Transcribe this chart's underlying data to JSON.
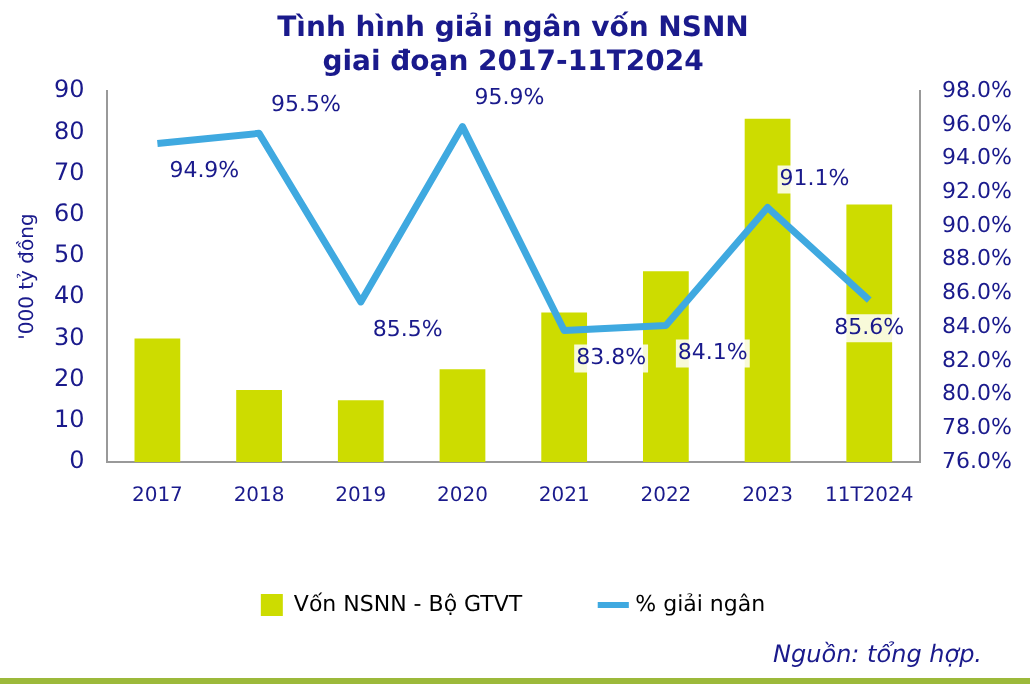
{
  "chart_data": {
    "type": "bar",
    "title": "Tình hình giải ngân vốn NSNN\ngiai đoạn 2017-11T2024",
    "ylabel": "'000 tỷ đồng",
    "categories": [
      "2017",
      "2018",
      "2019",
      "2020",
      "2021",
      "2022",
      "2023",
      "11T2024"
    ],
    "series": [
      {
        "name": "Vốn NSNN - Bộ GTVT",
        "color": "#cddc00",
        "values": [
          30,
          17.5,
          15,
          22.5,
          36.3,
          46.3,
          83.3,
          62.5
        ]
      },
      {
        "name": "% giải ngân",
        "type": "line",
        "axis": "y2",
        "color": "#3fa9e0",
        "values": [
          94.9,
          95.5,
          85.5,
          95.9,
          83.8,
          84.1,
          91.1,
          85.6
        ],
        "value_labels": [
          "94.9%",
          "95.5%",
          "85.5%",
          "95.9%",
          "83.8%",
          "84.1%",
          "91.1%",
          "85.6%"
        ]
      }
    ],
    "ylim": [
      0,
      90
    ],
    "yticks": [
      0,
      10,
      20,
      30,
      40,
      50,
      60,
      70,
      80,
      90
    ],
    "y2lim": [
      76,
      98
    ],
    "y2ticks": [
      {
        "value": 76,
        "label": "76.0%"
      },
      {
        "value": 78,
        "label": "78.0%"
      },
      {
        "value": 80,
        "label": "80.0%"
      },
      {
        "value": 82,
        "label": "82.0%"
      },
      {
        "value": 84,
        "label": "84.0%"
      },
      {
        "value": 86,
        "label": "86.0%"
      },
      {
        "value": 88,
        "label": "88.0%"
      },
      {
        "value": 90,
        "label": "90.0%"
      },
      {
        "value": 92,
        "label": "92.0%"
      },
      {
        "value": 94,
        "label": "94.0%"
      },
      {
        "value": 96,
        "label": "96.0%"
      },
      {
        "value": 98,
        "label": "98.0%"
      }
    ],
    "grid": false,
    "legend": "bottom",
    "marker": "none",
    "annotations": [
      "Nguồn: tổng hợp."
    ]
  }
}
